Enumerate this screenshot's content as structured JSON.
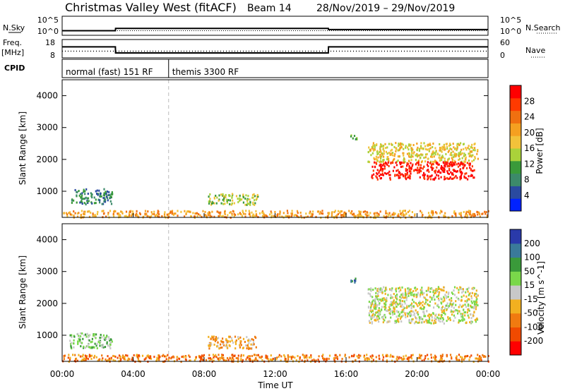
{
  "header": {
    "title": "Christmas Valley West (fitACF)",
    "beam": "Beam 14",
    "date_range": "28/Nov/2019 – 29/Nov/2019"
  },
  "strip_labels": {
    "nsky": "N.Sky",
    "nsearch": "N.Search",
    "freq": "Freq.",
    "freq_unit": "[MHz]",
    "nave": "Nave",
    "cpid": "CPID",
    "noise_top": "10^5",
    "noise_bottom": "10^0",
    "freq_top": "18",
    "freq_bottom": "8",
    "nave_top": "60",
    "nave_bottom": "0"
  },
  "cpid_segments": [
    {
      "label": "normal (fast) 151 RF",
      "start_hour": 0,
      "end_hour": 6
    },
    {
      "label": "themis 3300 RF",
      "start_hour": 6,
      "end_hour": 24
    }
  ],
  "chart_data": [
    {
      "type": "line",
      "panel": "noise",
      "series": [
        {
          "name": "N.Sky",
          "x": [
            0,
            0.2,
            3,
            3.01,
            15,
            15.01,
            24
          ],
          "y": [
            1.2,
            1.2,
            1.2,
            1.8,
            1.8,
            1.5,
            1.5
          ]
        },
        {
          "name": "N.Search",
          "x": [
            0,
            24
          ],
          "y": [
            1.2,
            1.2
          ]
        }
      ],
      "ylim": [
        0,
        5
      ],
      "yscale": "log"
    },
    {
      "type": "line",
      "panel": "frequency",
      "series": [
        {
          "name": "Freq.",
          "x": [
            0,
            3,
            3.01,
            15,
            15.01,
            24
          ],
          "y": [
            14,
            14,
            10.7,
            10.7,
            14,
            14
          ]
        },
        {
          "name": "Nave",
          "x": [
            0,
            24
          ],
          "y": [
            22,
            22
          ]
        }
      ],
      "ylim": [
        8,
        18
      ],
      "y2lim": [
        0,
        60
      ]
    },
    {
      "type": "heatmap",
      "panel": "power",
      "ylabel": "Slant Range [km]",
      "colorbar_label": "Power [dB]",
      "colorbar_ticks": [
        4,
        8,
        12,
        16,
        20,
        24,
        28
      ],
      "colors": [
        "#0022ff",
        "#2a4aa0",
        "#3c8a6a",
        "#3a9a3a",
        "#aad23a",
        "#f2c23a",
        "#f5a020",
        "#f07010",
        "#ff3a00",
        "#ff0000"
      ],
      "ylim": [
        180,
        4500
      ],
      "yticks": [
        1000,
        2000,
        3000,
        4000
      ],
      "regions": [
        {
          "x0": 0.5,
          "x1": 2.8,
          "y0": 620,
          "y1": 1100,
          "level": 2
        },
        {
          "x0": 8.2,
          "x1": 11.0,
          "y0": 600,
          "y1": 950,
          "level": 4
        },
        {
          "x0": 16.2,
          "x1": 16.6,
          "y0": 2650,
          "y1": 2850,
          "level": 3
        },
        {
          "x0": 17.2,
          "x1": 23.4,
          "y0": 1950,
          "y1": 2550,
          "level": 5
        },
        {
          "x0": 17.4,
          "x1": 23.2,
          "y0": 1400,
          "y1": 1950,
          "level": 9
        },
        {
          "x0": 0,
          "x1": 24,
          "y0": 200,
          "y1": 420,
          "level": 6
        }
      ]
    },
    {
      "type": "heatmap",
      "panel": "velocity",
      "ylabel": "Slant Range [km]",
      "colorbar_label": "Velocity [m s^-1]",
      "colorbar_ticks": [
        200,
        100,
        50,
        15,
        -15,
        -50,
        -100,
        -200
      ],
      "colors": [
        "#2a3aaa",
        "#3a7a9a",
        "#3a9a3a",
        "#7ad84a",
        "#c8c8c8",
        "#f2b020",
        "#f07a10",
        "#f04a00",
        "#ff0000"
      ],
      "ylim": [
        180,
        4500
      ],
      "yticks": [
        1000,
        2000,
        3000,
        4000
      ],
      "regions": [
        {
          "x0": 0.4,
          "x1": 2.8,
          "y0": 620,
          "y1": 1100,
          "level": 3
        },
        {
          "x0": 8.2,
          "x1": 10.9,
          "y0": 600,
          "y1": 1000,
          "level": 5
        },
        {
          "x0": 16.2,
          "x1": 16.6,
          "y0": 2650,
          "y1": 2850,
          "level": 1
        },
        {
          "x0": 17.2,
          "x1": 23.4,
          "y0": 1400,
          "y1": 2550,
          "level": 4
        },
        {
          "x0": 0,
          "x1": 24,
          "y0": 200,
          "y1": 420,
          "level": 6
        }
      ]
    }
  ],
  "xaxis": {
    "label": "Time UT",
    "tick_hours": [
      0,
      4,
      8,
      12,
      16,
      20,
      24
    ],
    "tick_labels": [
      "00:00",
      "04:00",
      "08:00",
      "12:00",
      "16:00",
      "20:00",
      "00:00"
    ],
    "xlim": [
      0,
      24
    ]
  }
}
